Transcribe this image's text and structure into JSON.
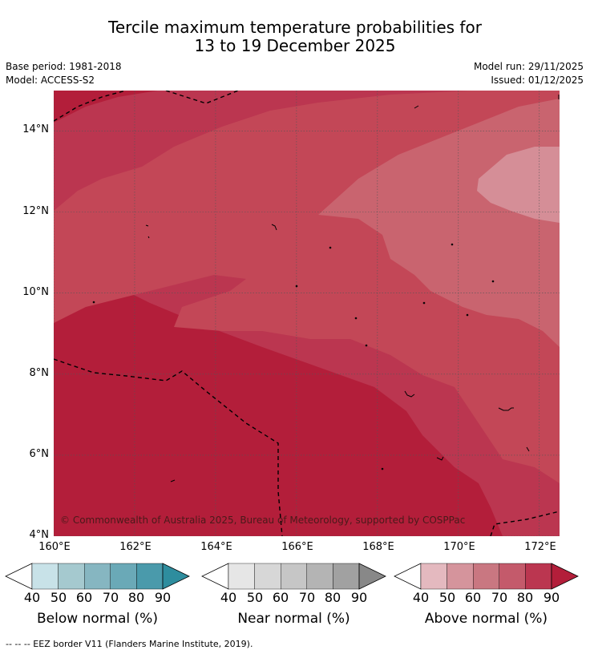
{
  "title": {
    "line1": "Tercile maximum temperature probabilities for",
    "line2": "13 to 19 December 2025"
  },
  "meta": {
    "base_period": "Base period: 1981-2018",
    "model": "Model: ACCESS-S2",
    "model_run": "Model run: 29/11/2025",
    "issued": "Issued: 01/12/2025"
  },
  "map": {
    "lat_labels": [
      "14°N",
      "12°N",
      "10°N",
      "8°N",
      "6°N",
      "4°N"
    ],
    "lon_labels": [
      "160°E",
      "162°E",
      "164°E",
      "166°E",
      "168°E",
      "170°E",
      "172°E"
    ],
    "lat_values": [
      14,
      12,
      10,
      8,
      6,
      4
    ],
    "lon_values": [
      160,
      162,
      164,
      166,
      168,
      170,
      172
    ],
    "copyright": "© Commonwealth of Australia 2025, Bureau of Meteorology, supported by COSPPac"
  },
  "colorbars": [
    {
      "title": "Below normal (%)",
      "ticks": [
        "40",
        "50",
        "60",
        "70",
        "80",
        "90"
      ],
      "colors": [
        "#ffffff",
        "#c8e2e8",
        "#a5c9cf",
        "#86b6c1",
        "#6aa9b7",
        "#4a9aab",
        "#2e8d9e"
      ]
    },
    {
      "title": "Near normal (%)",
      "ticks": [
        "40",
        "50",
        "60",
        "70",
        "80",
        "90"
      ],
      "colors": [
        "#ffffff",
        "#e6e6e6",
        "#d7d7d7",
        "#c6c6c6",
        "#b4b4b4",
        "#a1a1a1",
        "#888888"
      ]
    },
    {
      "title": "Above normal (%)",
      "ticks": [
        "40",
        "50",
        "60",
        "70",
        "80",
        "90"
      ],
      "colors": [
        "#ffffff",
        "#e4b9bf",
        "#d5949c",
        "#c97781",
        "#c45a6b",
        "#bb3650",
        "#b31e3a"
      ]
    }
  ],
  "footer": "--  --  -- EEZ border V11 (Flanders Marine Institute, 2019)."
}
